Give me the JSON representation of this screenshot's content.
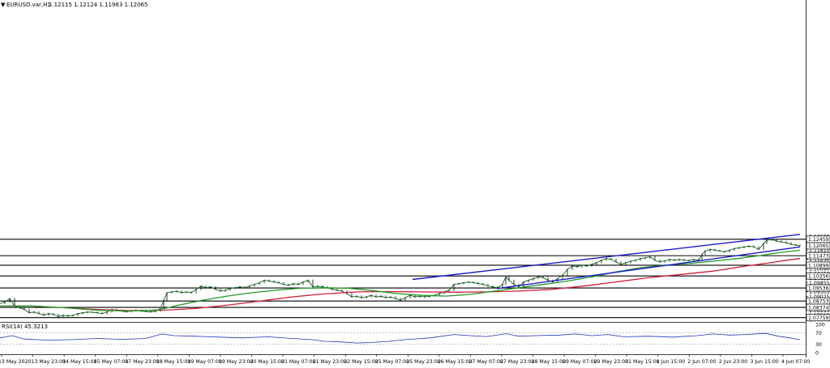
{
  "header": {
    "symbol": "EURUSD.var,H1",
    "ohlc": "1.12115 1.12124 1.11983 1.12065",
    "rsi_label": "RSI(14) 45.3213"
  },
  "chart_data": {
    "type": "candlestick",
    "symbol": "EURUSD.var",
    "timeframe": "H1",
    "ylim": [
      1.0755,
      1.2681
    ],
    "y_ticks": [
      1.1263,
      1.1235,
      1.1181,
      1.11535,
      1.1125,
      1.10965,
      1.1069,
      1.1041,
      1.10135,
      1.09855,
      1.09305,
      1.09025,
      1.0847,
      1.08195,
      1.07915,
      1.0764
    ],
    "last_price": 1.12065,
    "levels": [
      1.12459,
      1.11473,
      1.10899,
      1.10256,
      1.09536,
      1.08753,
      1.08374,
      1.07759
    ],
    "x_labels": [
      "13 May 2020",
      "13 May 23:00",
      "14 May 15:00",
      "15 May 07:00",
      "17 May 23:00",
      "18 May 15:00",
      "19 May 07:00",
      "19 May 23:00",
      "20 May 15:00",
      "21 May 07:00",
      "21 May 23:00",
      "22 May 15:00",
      "25 May 07:00",
      "25 May 23:00",
      "26 May 15:00",
      "27 May 07:00",
      "27 May 23:00",
      "28 May 15:00",
      "29 May 07:00",
      "29 May 23:00",
      "31 May 15:00",
      "1 Jun 15:00",
      "2 Jun 07:00",
      "2 Jun 23:00",
      "3 Jun 15:00",
      "4 Jun 07:00"
    ],
    "close_path": [
      [
        0,
        1.086
      ],
      [
        6,
        1.087
      ],
      [
        12,
        1.089
      ],
      [
        18,
        1.0845
      ],
      [
        24,
        1.0835
      ],
      [
        30,
        1.0825
      ],
      [
        36,
        1.0805
      ],
      [
        42,
        1.081
      ],
      [
        48,
        1.08
      ],
      [
        54,
        1.079
      ],
      [
        60,
        1.08
      ],
      [
        66,
        1.0795
      ],
      [
        72,
        1.0782
      ],
      [
        78,
        1.079
      ],
      [
        84,
        1.0785
      ],
      [
        90,
        1.079
      ],
      [
        96,
        1.08
      ],
      [
        102,
        1.0805
      ],
      [
        108,
        1.081
      ],
      [
        114,
        1.0808
      ],
      [
        120,
        1.0805
      ],
      [
        126,
        1.08
      ],
      [
        132,
        1.081
      ],
      [
        138,
        1.0825
      ],
      [
        144,
        1.082
      ],
      [
        150,
        1.0815
      ],
      [
        156,
        1.081
      ],
      [
        162,
        1.0818
      ],
      [
        168,
        1.082
      ],
      [
        174,
        1.0815
      ],
      [
        180,
        1.0812
      ],
      [
        186,
        1.081
      ],
      [
        192,
        1.0815
      ],
      [
        198,
        1.083
      ],
      [
        202,
        1.088
      ],
      [
        206,
        1.0925
      ],
      [
        212,
        1.093
      ],
      [
        218,
        1.0935
      ],
      [
        224,
        1.0925
      ],
      [
        230,
        1.093
      ],
      [
        236,
        1.0925
      ],
      [
        242,
        1.0945
      ],
      [
        248,
        1.0965
      ],
      [
        254,
        1.0955
      ],
      [
        260,
        1.096
      ],
      [
        266,
        1.0945
      ],
      [
        272,
        1.0935
      ],
      [
        278,
        1.094
      ],
      [
        284,
        1.095
      ],
      [
        290,
        1.0955
      ],
      [
        296,
        1.096
      ],
      [
        302,
        1.0955
      ],
      [
        308,
        1.0965
      ],
      [
        314,
        1.0975
      ],
      [
        320,
        1.0985
      ],
      [
        326,
        1.1
      ],
      [
        332,
        1.0995
      ],
      [
        338,
        1.099
      ],
      [
        344,
        1.0985
      ],
      [
        350,
        1.0975
      ],
      [
        356,
        1.097
      ],
      [
        362,
        1.098
      ],
      [
        368,
        1.0975
      ],
      [
        374,
        1.099
      ],
      [
        380,
        1.1
      ],
      [
        386,
        1.096
      ],
      [
        392,
        1.0965
      ],
      [
        398,
        1.096
      ],
      [
        404,
        1.0955
      ],
      [
        410,
        1.0945
      ],
      [
        416,
        1.094
      ],
      [
        422,
        1.0935
      ],
      [
        428,
        1.092
      ],
      [
        434,
        1.09
      ],
      [
        440,
        1.0905
      ],
      [
        446,
        1.0895
      ],
      [
        452,
        1.09
      ],
      [
        458,
        1.091
      ],
      [
        464,
        1.09
      ],
      [
        470,
        1.0905
      ],
      [
        476,
        1.0895
      ],
      [
        482,
        1.09
      ],
      [
        488,
        1.089
      ],
      [
        494,
        1.088
      ],
      [
        500,
        1.0895
      ],
      [
        506,
        1.091
      ],
      [
        512,
        1.09
      ],
      [
        518,
        1.0905
      ],
      [
        524,
        1.09
      ],
      [
        530,
        1.0905
      ],
      [
        536,
        1.091
      ],
      [
        542,
        1.092
      ],
      [
        548,
        1.093
      ],
      [
        554,
        1.094
      ],
      [
        560,
        1.0975
      ],
      [
        566,
        1.098
      ],
      [
        572,
        1.0985
      ],
      [
        578,
        1.099
      ],
      [
        584,
        1.0985
      ],
      [
        590,
        1.098
      ],
      [
        596,
        1.0975
      ],
      [
        602,
        1.0965
      ],
      [
        608,
        1.096
      ],
      [
        614,
        1.0955
      ],
      [
        620,
        1.0975
      ],
      [
        624,
        1.102
      ],
      [
        628,
        1.1
      ],
      [
        634,
        1.0975
      ],
      [
        640,
        1.096
      ],
      [
        646,
        1.099
      ],
      [
        652,
        1.1
      ],
      [
        658,
        1.101
      ],
      [
        664,
        1.102
      ],
      [
        670,
        1.1015
      ],
      [
        676,
        1.1
      ],
      [
        682,
        1.099
      ],
      [
        688,
        1.101
      ],
      [
        694,
        1.103
      ],
      [
        700,
        1.1065
      ],
      [
        706,
        1.1085
      ],
      [
        712,
        1.108
      ],
      [
        718,
        1.109
      ],
      [
        724,
        1.1085
      ],
      [
        730,
        1.1095
      ],
      [
        736,
        1.1105
      ],
      [
        742,
        1.112
      ],
      [
        748,
        1.113
      ],
      [
        754,
        1.1125
      ],
      [
        760,
        1.111
      ],
      [
        766,
        1.1095
      ],
      [
        772,
        1.1105
      ],
      [
        778,
        1.1115
      ],
      [
        784,
        1.112
      ],
      [
        790,
        1.113
      ],
      [
        796,
        1.1135
      ],
      [
        802,
        1.114
      ],
      [
        808,
        1.112
      ],
      [
        814,
        1.111
      ],
      [
        820,
        1.1115
      ],
      [
        826,
        1.1125
      ],
      [
        832,
        1.112
      ],
      [
        838,
        1.1125
      ],
      [
        844,
        1.112
      ],
      [
        850,
        1.1118
      ],
      [
        856,
        1.1125
      ],
      [
        862,
        1.112
      ],
      [
        866,
        1.1155
      ],
      [
        870,
        1.1175
      ],
      [
        876,
        1.1185
      ],
      [
        882,
        1.118
      ],
      [
        888,
        1.1175
      ],
      [
        894,
        1.117
      ],
      [
        900,
        1.118
      ],
      [
        906,
        1.119
      ],
      [
        912,
        1.1195
      ],
      [
        918,
        1.12
      ],
      [
        924,
        1.1205
      ],
      [
        930,
        1.12
      ],
      [
        936,
        1.1185
      ],
      [
        942,
        1.122
      ],
      [
        946,
        1.124
      ],
      [
        952,
        1.1245
      ],
      [
        958,
        1.1235
      ],
      [
        964,
        1.123
      ],
      [
        970,
        1.1225
      ],
      [
        976,
        1.1215
      ],
      [
        982,
        1.121
      ],
      [
        987,
        1.12065
      ]
    ],
    "ma_green": [
      [
        0,
        1.0845
      ],
      [
        40,
        1.0845
      ],
      [
        80,
        1.0835
      ],
      [
        120,
        1.082
      ],
      [
        160,
        1.0815
      ],
      [
        195,
        1.0822
      ],
      [
        220,
        1.085
      ],
      [
        250,
        1.088
      ],
      [
        280,
        1.0905
      ],
      [
        310,
        1.0925
      ],
      [
        340,
        1.094
      ],
      [
        370,
        1.0952
      ],
      [
        400,
        1.0955
      ],
      [
        430,
        1.0952
      ],
      [
        460,
        1.0938
      ],
      [
        490,
        1.092
      ],
      [
        520,
        1.091
      ],
      [
        550,
        1.0905
      ],
      [
        580,
        1.0915
      ],
      [
        610,
        1.0935
      ],
      [
        640,
        1.0955
      ],
      [
        670,
        1.0975
      ],
      [
        700,
        1.0995
      ],
      [
        730,
        1.102
      ],
      [
        760,
        1.105
      ],
      [
        790,
        1.1075
      ],
      [
        820,
        1.109
      ],
      [
        850,
        1.11
      ],
      [
        880,
        1.1115
      ],
      [
        910,
        1.113
      ],
      [
        940,
        1.115
      ],
      [
        960,
        1.1165
      ],
      [
        987,
        1.118
      ]
    ],
    "ma_red": [
      [
        0,
        1.0845
      ],
      [
        40,
        1.0845
      ],
      [
        80,
        1.0835
      ],
      [
        120,
        1.0825
      ],
      [
        160,
        1.0818
      ],
      [
        200,
        1.082
      ],
      [
        240,
        1.083
      ],
      [
        280,
        1.085
      ],
      [
        320,
        1.0875
      ],
      [
        360,
        1.09
      ],
      [
        400,
        1.0918
      ],
      [
        440,
        1.093
      ],
      [
        480,
        1.0932
      ],
      [
        520,
        1.093
      ],
      [
        560,
        1.0928
      ],
      [
        600,
        1.093
      ],
      [
        640,
        1.0935
      ],
      [
        680,
        1.0945
      ],
      [
        720,
        1.0965
      ],
      [
        760,
        1.099
      ],
      [
        800,
        1.1015
      ],
      [
        840,
        1.1035
      ],
      [
        880,
        1.1055
      ],
      [
        920,
        1.1085
      ],
      [
        950,
        1.1105
      ],
      [
        970,
        1.112
      ],
      [
        987,
        1.113
      ]
    ],
    "channel_upper": [
      [
        509,
        1.1005
      ],
      [
        987,
        1.1275
      ]
    ],
    "channel_lower": [
      [
        613,
        1.095
      ],
      [
        987,
        1.12
      ]
    ],
    "rsi": {
      "ylim": [
        0,
        100
      ],
      "levels": [
        100,
        70,
        30,
        0
      ],
      "values": [
        [
          0,
          52
        ],
        [
          15,
          60
        ],
        [
          30,
          48
        ],
        [
          60,
          44
        ],
        [
          90,
          46
        ],
        [
          120,
          50
        ],
        [
          150,
          47
        ],
        [
          180,
          50
        ],
        [
          200,
          66
        ],
        [
          215,
          60
        ],
        [
          240,
          58
        ],
        [
          270,
          55
        ],
        [
          300,
          52
        ],
        [
          330,
          56
        ],
        [
          360,
          50
        ],
        [
          385,
          46
        ],
        [
          400,
          40
        ],
        [
          420,
          38
        ],
        [
          440,
          34
        ],
        [
          460,
          36
        ],
        [
          480,
          40
        ],
        [
          500,
          46
        ],
        [
          530,
          52
        ],
        [
          560,
          64
        ],
        [
          580,
          60
        ],
        [
          600,
          57
        ],
        [
          625,
          67
        ],
        [
          640,
          58
        ],
        [
          660,
          60
        ],
        [
          690,
          62
        ],
        [
          710,
          66
        ],
        [
          730,
          60
        ],
        [
          750,
          64
        ],
        [
          770,
          56
        ],
        [
          800,
          58
        ],
        [
          830,
          55
        ],
        [
          860,
          60
        ],
        [
          880,
          66
        ],
        [
          900,
          62
        ],
        [
          920,
          64
        ],
        [
          945,
          68
        ],
        [
          960,
          58
        ],
        [
          975,
          52
        ],
        [
          987,
          45.3
        ]
      ]
    }
  }
}
